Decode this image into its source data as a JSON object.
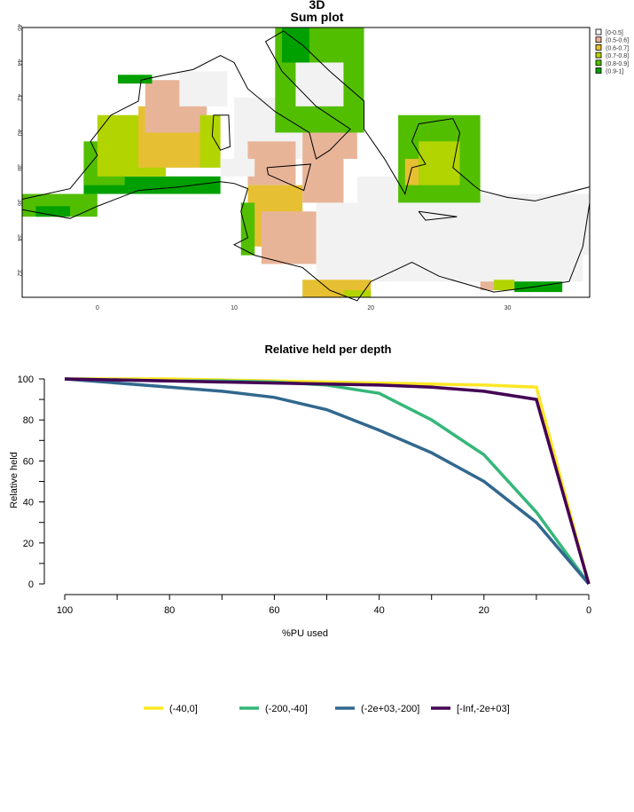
{
  "chart_data": [
    {
      "type": "heatmap",
      "title": "3D",
      "subtitle": "Sum plot",
      "xlim": [
        -5.5,
        36
      ],
      "ylim": [
        30.6,
        46
      ],
      "x_ticks": [
        "0",
        "10",
        "20",
        "30"
      ],
      "x_tick_values": [
        0,
        10,
        20,
        30
      ],
      "y_ticks": [
        "32",
        "34",
        "36",
        "38",
        "40",
        "42",
        "44",
        "46"
      ],
      "y_tick_values": [
        32,
        34,
        36,
        38,
        40,
        42,
        44,
        46
      ],
      "legend": {
        "placement": "right",
        "entries": [
          {
            "label": "[0-0.5]",
            "color": "#f2f2f2"
          },
          {
            "label": "(0.5-0.6]",
            "color": "#e8b498"
          },
          {
            "label": "(0.6-0.7]",
            "color": "#e6c032"
          },
          {
            "label": "(0.7-0.8]",
            "color": "#b2d400"
          },
          {
            "label": "(0.8-0.9]",
            "color": "#52be00"
          },
          {
            "label": "(0.9-1]",
            "color": "#00a000"
          }
        ]
      },
      "cells": [
        [
          16,
          35.5,
          31.5,
          36,
          0
        ],
        [
          19,
          26,
          34,
          37.5,
          0
        ],
        [
          26,
          36,
          33,
          36.5,
          0
        ],
        [
          -5.5,
          0,
          35.2,
          36.5,
          4
        ],
        [
          -4.5,
          -2,
          35.2,
          35.8,
          5
        ],
        [
          -1,
          9,
          36.5,
          37.5,
          5
        ],
        [
          -1,
          2,
          37,
          39.5,
          4
        ],
        [
          0,
          5,
          37.5,
          41,
          3
        ],
        [
          3,
          7.5,
          38,
          41.5,
          2
        ],
        [
          3.5,
          8,
          40,
          43,
          1
        ],
        [
          1.5,
          4,
          42.8,
          43.3,
          5
        ],
        [
          6,
          9.5,
          41.5,
          43.5,
          0
        ],
        [
          7.5,
          9,
          38,
          41,
          3
        ],
        [
          10,
          15,
          38.5,
          42,
          0
        ],
        [
          11,
          14.5,
          37,
          39.5,
          1
        ],
        [
          9,
          11.5,
          37.5,
          38.5,
          0
        ],
        [
          11,
          15,
          33.5,
          37,
          2
        ],
        [
          12,
          16,
          32.5,
          35.5,
          1
        ],
        [
          10.5,
          11.5,
          33,
          36,
          4
        ],
        [
          15,
          18,
          36,
          40,
          1
        ],
        [
          16.5,
          19,
          38.5,
          41,
          1
        ],
        [
          13,
          19.5,
          40,
          46,
          4
        ],
        [
          14.5,
          18,
          41.5,
          44,
          0
        ],
        [
          13.5,
          15.5,
          44,
          46,
          5
        ],
        [
          22,
          28,
          36,
          41,
          4
        ],
        [
          23.5,
          26.5,
          37,
          39.5,
          3
        ],
        [
          22.5,
          23.5,
          37,
          38.5,
          2
        ],
        [
          15,
          20,
          30.6,
          31.6,
          2
        ],
        [
          18,
          20,
          30.6,
          31,
          3
        ],
        [
          29,
          30.5,
          31,
          31.6,
          3
        ],
        [
          30.5,
          34,
          30.9,
          31.5,
          5
        ],
        [
          28,
          29,
          31,
          31.5,
          1
        ]
      ]
    },
    {
      "type": "line",
      "title": "Relative held per depth",
      "xlabel": "%PU used",
      "ylabel": "Relative held",
      "xlim": [
        100,
        0
      ],
      "ylim": [
        0,
        100
      ],
      "x_ticks": [
        "100",
        "80",
        "60",
        "40",
        "20",
        "0"
      ],
      "y_ticks": [
        "0",
        "20",
        "40",
        "60",
        "80",
        "100"
      ],
      "grid": false,
      "legend_placement": "bottom",
      "x": [
        100,
        90,
        80,
        70,
        60,
        50,
        40,
        30,
        20,
        10,
        0
      ],
      "series": [
        {
          "name": "(-40,0]",
          "color": "#fde725",
          "values": [
            100,
            100,
            100,
            99.5,
            99,
            98.5,
            98,
            97.5,
            97,
            96,
            0
          ]
        },
        {
          "name": "(-200,-40]",
          "color": "#35b779",
          "values": [
            100,
            99.5,
            99,
            99,
            98.5,
            97,
            93,
            80,
            63,
            35,
            0
          ]
        },
        {
          "name": "(-2e+03,-200]",
          "color": "#31688e",
          "values": [
            100,
            98,
            96,
            94,
            91,
            85,
            75,
            64,
            50,
            30,
            0
          ]
        },
        {
          "name": "[-Inf,-2e+03]",
          "color": "#440154",
          "values": [
            100,
            99.5,
            99,
            98.5,
            98,
            97.5,
            97,
            96,
            94,
            90,
            0
          ]
        }
      ]
    }
  ]
}
